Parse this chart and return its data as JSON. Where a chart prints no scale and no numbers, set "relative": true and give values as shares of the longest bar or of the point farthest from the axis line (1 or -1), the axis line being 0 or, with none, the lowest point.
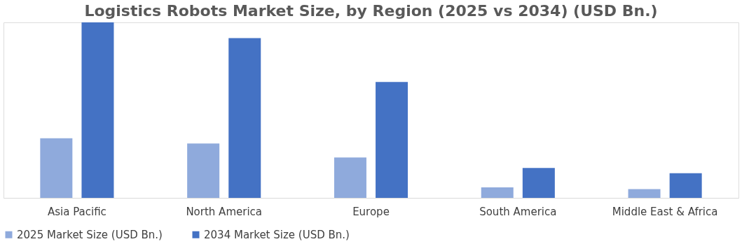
{
  "chart_data": {
    "type": "bar",
    "title": "Logistics Robots Market Size, by Region (2025 vs 2034) (USD Bn.)",
    "relative": true,
    "categories": [
      "Asia Pacific",
      "North America",
      "Europe",
      "South America",
      "Middle East & Africa"
    ],
    "series": [
      {
        "name": "2025 Market Size (USD Bn.)",
        "color": "#8faadc",
        "values": [
          0.34,
          0.31,
          0.23,
          0.06,
          0.05
        ]
      },
      {
        "name": "2034 Market Size (USD Bn.)",
        "color": "#4472c4",
        "values": [
          1,
          0.91,
          0.66,
          0.17,
          0.14
        ]
      }
    ],
    "legend": "bottom",
    "grid": false
  }
}
